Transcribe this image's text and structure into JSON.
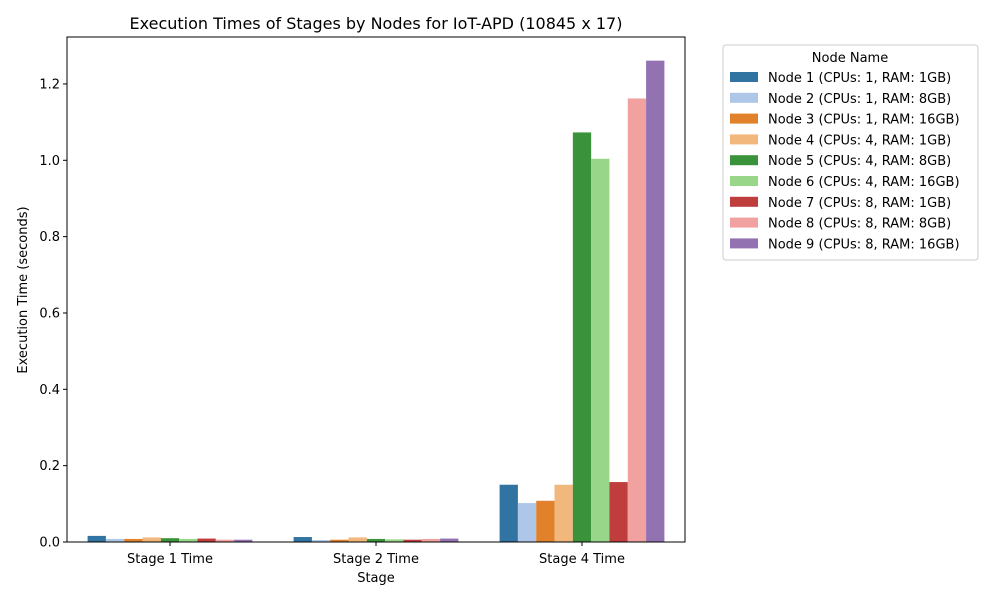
{
  "chart_data": {
    "type": "bar",
    "title": "Execution Times of Stages by Nodes for IoT-APD (10845 x 17)",
    "xlabel": "Stage",
    "ylabel": "Execution Time (seconds)",
    "ylim": [
      0,
      1.323
    ],
    "yticks": [
      0.0,
      0.2,
      0.4,
      0.6,
      0.8,
      1.0,
      1.2
    ],
    "ytick_labels": [
      "0.0",
      "0.2",
      "0.4",
      "0.6",
      "0.8",
      "1.0",
      "1.2"
    ],
    "grid": false,
    "legend_title": "Node Name",
    "legend_position": "outside-right-top",
    "categories": [
      "Stage 1 Time",
      "Stage 2 Time",
      "Stage 4 Time"
    ],
    "series": [
      {
        "name": "Node 1 (CPUs: 1, RAM: 1GB)",
        "color": "#3274a1",
        "values": [
          0.016,
          0.013,
          0.15
        ]
      },
      {
        "name": "Node 2 (CPUs: 1, RAM: 8GB)",
        "color": "#aec7e8",
        "values": [
          0.008,
          0.005,
          0.102
        ]
      },
      {
        "name": "Node 3 (CPUs: 1, RAM: 16GB)",
        "color": "#e1812c",
        "values": [
          0.008,
          0.006,
          0.108
        ]
      },
      {
        "name": "Node 4 (CPUs: 4, RAM: 1GB)",
        "color": "#f2b77d",
        "values": [
          0.012,
          0.012,
          0.15
        ]
      },
      {
        "name": "Node 5 (CPUs: 4, RAM: 8GB)",
        "color": "#3a923a",
        "values": [
          0.01,
          0.008,
          1.073
        ]
      },
      {
        "name": "Node 6 (CPUs: 4, RAM: 16GB)",
        "color": "#98d68a",
        "values": [
          0.008,
          0.007,
          1.004
        ]
      },
      {
        "name": "Node 7 (CPUs: 8, RAM: 1GB)",
        "color": "#c03d3e",
        "values": [
          0.009,
          0.006,
          0.157
        ]
      },
      {
        "name": "Node 8 (CPUs: 8, RAM: 8GB)",
        "color": "#f1a2a0",
        "values": [
          0.006,
          0.008,
          1.162
        ]
      },
      {
        "name": "Node 9 (CPUs: 8, RAM: 16GB)",
        "color": "#9372b2",
        "values": [
          0.006,
          0.009,
          1.261
        ]
      }
    ]
  }
}
